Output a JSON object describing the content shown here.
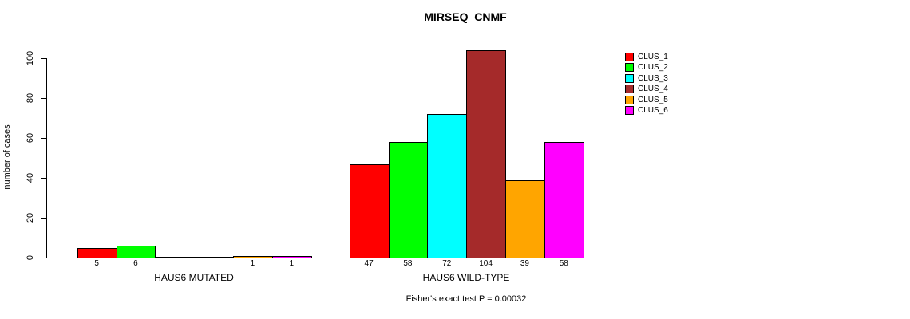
{
  "chart_data": {
    "type": "bar",
    "title": "MIRSEQ_CNMF",
    "ylabel": "number of cases",
    "ylim": [
      0,
      100
    ],
    "yticks": [
      0,
      20,
      40,
      60,
      80,
      100
    ],
    "grid": false,
    "legend_position": "right",
    "categories": [
      "HAUS6 MUTATED",
      "HAUS6 WILD-TYPE"
    ],
    "series": [
      {
        "name": "CLUS_1",
        "color": "#FF0000",
        "values": [
          5,
          47
        ]
      },
      {
        "name": "CLUS_2",
        "color": "#00FF00",
        "values": [
          6,
          58
        ]
      },
      {
        "name": "CLUS_3",
        "color": "#00FFFF",
        "values": [
          0,
          72
        ]
      },
      {
        "name": "CLUS_4",
        "color": "#A52A2A",
        "values": [
          0,
          104
        ]
      },
      {
        "name": "CLUS_5",
        "color": "#FFA500",
        "values": [
          1,
          39
        ]
      },
      {
        "name": "CLUS_6",
        "color": "#FF00FF",
        "values": [
          1,
          58
        ]
      }
    ],
    "bar_value_labels": [
      [
        "5",
        "6",
        "",
        "",
        "1",
        "1"
      ],
      [
        "47",
        "58",
        "72",
        "104",
        "39",
        "58"
      ]
    ],
    "annotation": "Fisher's exact test P = 0.00032"
  }
}
